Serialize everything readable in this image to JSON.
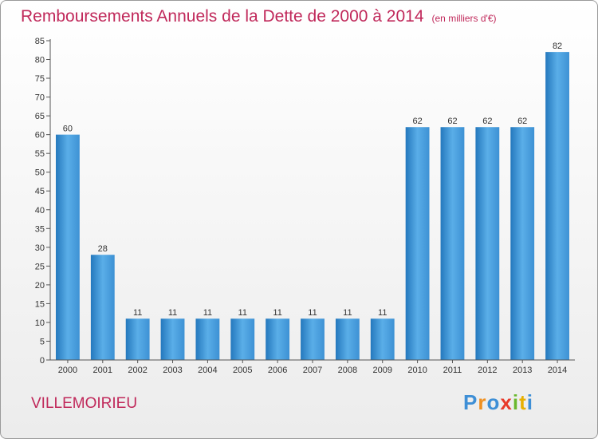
{
  "title": "Remboursements Annuels de la Dette de 2000 à 2014",
  "unit_note": "(en milliers d'€)",
  "commune": "VILLEMOIRIEU",
  "logo": {
    "letters": [
      "P",
      "r",
      "o",
      "x",
      "i",
      "t",
      "i"
    ],
    "colors": [
      "#3e8fd6",
      "#f09020",
      "#3e8fd6",
      "#e83a2a",
      "#6ab82e",
      "#e8b000",
      "#3e8fd6"
    ]
  },
  "colors": {
    "bar": "#3d91d4",
    "bar_light": "#5aaee8",
    "bar_dark": "#2478bd",
    "title": "#c0285a"
  },
  "chart_data": {
    "type": "bar",
    "categories": [
      "2000",
      "2001",
      "2002",
      "2003",
      "2004",
      "2005",
      "2006",
      "2007",
      "2008",
      "2009",
      "2010",
      "2011",
      "2012",
      "2013",
      "2014"
    ],
    "values": [
      60,
      28,
      11,
      11,
      11,
      11,
      11,
      11,
      11,
      11,
      62,
      62,
      62,
      62,
      82
    ],
    "data_labels": [
      "60",
      "28",
      "11",
      "11",
      "11",
      "11",
      "11",
      "11",
      "11",
      "11",
      "62",
      "62",
      "62",
      "62",
      "82"
    ],
    "ylim": [
      0,
      85
    ],
    "yticks": [
      0,
      5,
      10,
      15,
      20,
      25,
      30,
      35,
      40,
      45,
      50,
      55,
      60,
      65,
      70,
      75,
      80,
      85
    ],
    "grid": false,
    "legend": "none"
  }
}
